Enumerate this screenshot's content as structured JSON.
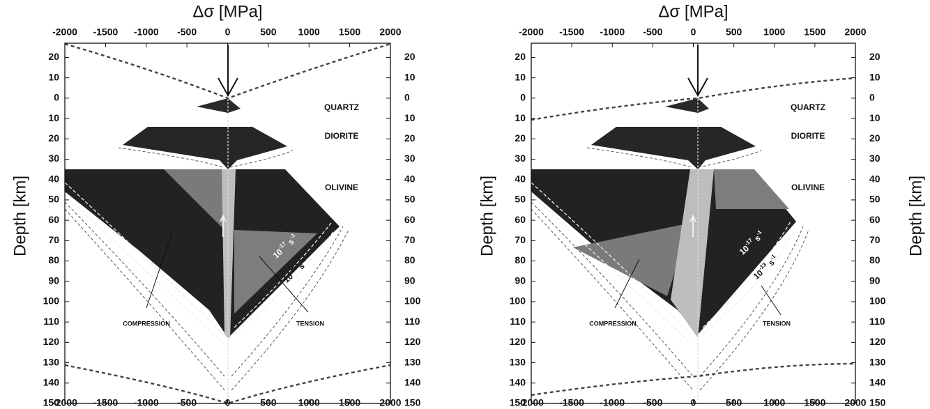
{
  "chart_data": [
    {
      "type": "envelope",
      "title": "Δσ [MPa]",
      "ylabel": "Depth [km]",
      "xlim": [
        -2000,
        2000
      ],
      "ylim": [
        -27,
        150
      ],
      "xticks": [
        -2000,
        -1500,
        -1000,
        -500,
        0,
        500,
        1000,
        1500,
        2000
      ],
      "yticks": [
        {
          "value": -20,
          "label": "20"
        },
        {
          "value": -10,
          "label": "10"
        },
        0,
        10,
        20,
        30,
        40,
        50,
        60,
        70,
        80,
        90,
        100,
        110,
        120,
        130,
        140,
        150
      ],
      "annotations": {
        "quartz": "QUARTZ",
        "diorite": "DIORITE",
        "olivine": "OLIVINE",
        "compression": "COMPRESSION",
        "tension": "TENSION"
      },
      "rate_labels": [
        {
          "base": "10",
          "exp": "-17",
          "unit": "s",
          "unit_exp": "-1"
        },
        {
          "base": "10",
          "exp": "-13",
          "unit": "s",
          "unit_exp": "-1"
        }
      ]
    },
    {
      "type": "envelope",
      "title": "Δσ [MPa]",
      "ylabel": "Depth [km]",
      "xlim": [
        -2000,
        2000
      ],
      "ylim": [
        -27,
        150
      ],
      "xticks": [
        -2000,
        -1500,
        -1000,
        -500,
        0,
        500,
        1000,
        1500,
        2000
      ],
      "yticks": [
        {
          "value": -20,
          "label": "20"
        },
        {
          "value": -10,
          "label": "10"
        },
        0,
        10,
        20,
        30,
        40,
        50,
        60,
        70,
        80,
        90,
        100,
        110,
        120,
        130,
        140,
        150
      ],
      "annotations": {
        "quartz": "QUARTZ",
        "diorite": "DIORITE",
        "olivine": "OLIVINE",
        "compression": "COMPRESSION",
        "tension": "TENSION"
      },
      "rate_labels": [
        {
          "base": "10",
          "exp": "-17",
          "unit": "s",
          "unit_exp": "-1"
        },
        {
          "base": "10",
          "exp": "-13",
          "unit": "s",
          "unit_exp": "-1"
        }
      ]
    }
  ]
}
